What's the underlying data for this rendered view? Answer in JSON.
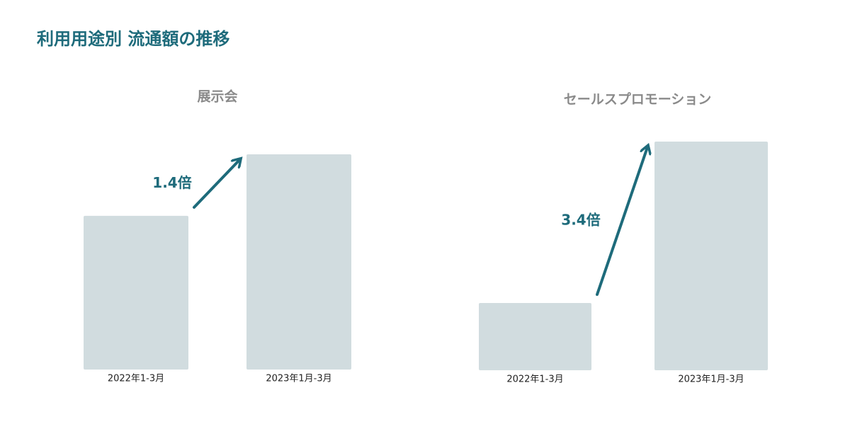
{
  "title": "利用用途別 流通額の推移",
  "chart_data": [
    {
      "type": "bar",
      "title": "展示会",
      "categories": [
        "2022年1-3月",
        "2023年1月-3月"
      ],
      "values": [
        1,
        1.4
      ],
      "ylim": [
        0,
        1.4
      ],
      "color": "#d1dcdf",
      "annotation": "1.4倍",
      "arrow_color": "#1e6b7b"
    },
    {
      "type": "bar",
      "title": "セールスプロモーション",
      "categories": [
        "2022年1-3月",
        "2023年1月-3月"
      ],
      "values": [
        1,
        3.4
      ],
      "ylim": [
        0,
        3.4
      ],
      "color": "#d1dcdf",
      "annotation": "3.4倍",
      "arrow_color": "#1e6b7b"
    }
  ]
}
